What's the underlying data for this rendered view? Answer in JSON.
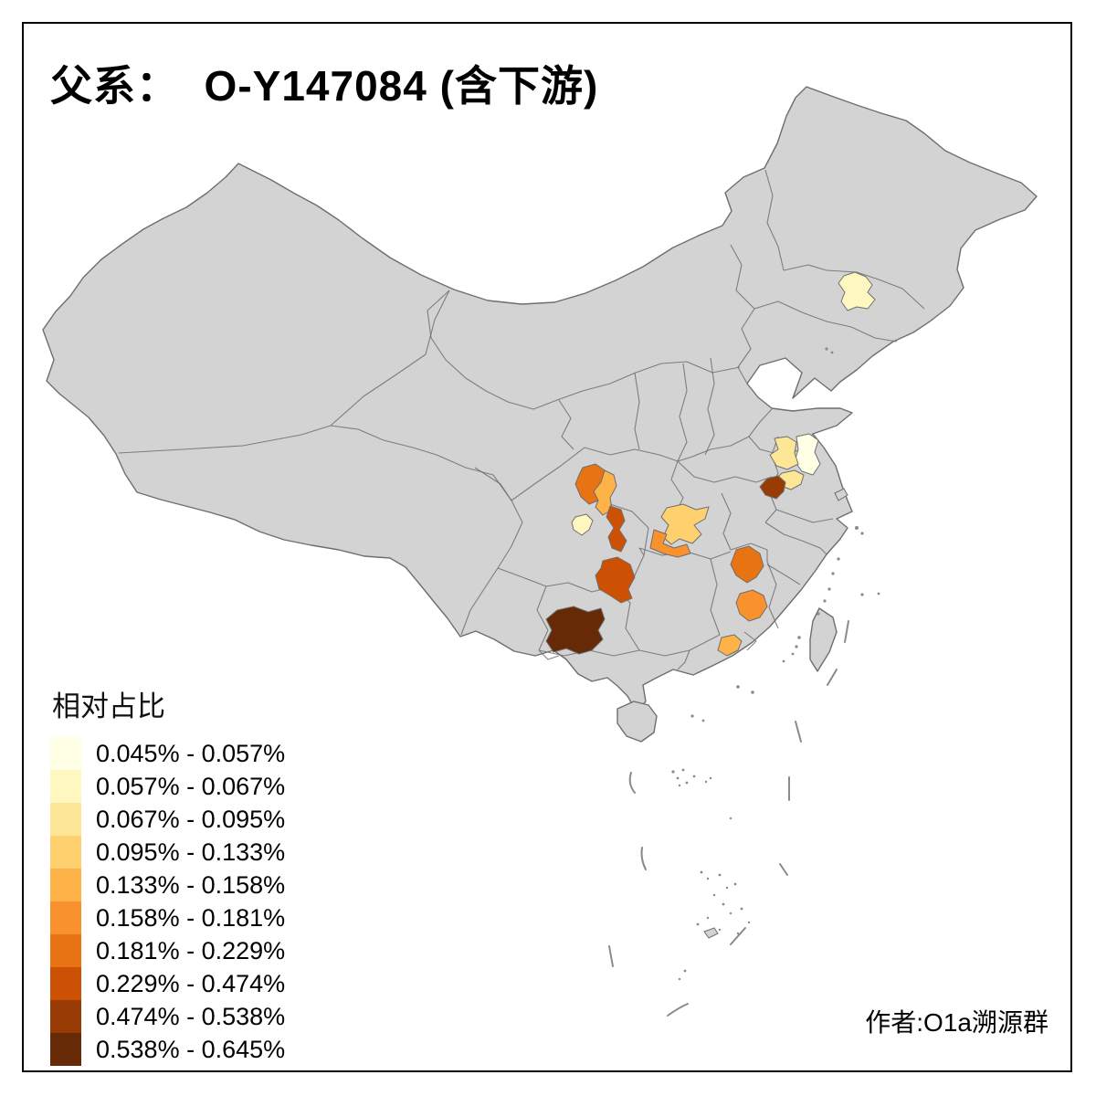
{
  "title": "父系：  O-Y147084 (含下游)",
  "legend": {
    "title": "相对占比",
    "items": [
      {
        "label": "0.045% - 0.057%",
        "color": "#FFFFE5"
      },
      {
        "label": "0.057% - 0.067%",
        "color": "#FFF7C0"
      },
      {
        "label": "0.067% - 0.095%",
        "color": "#FEE697"
      },
      {
        "label": "0.095% - 0.133%",
        "color": "#FED16E"
      },
      {
        "label": "0.133% - 0.158%",
        "color": "#FDB347"
      },
      {
        "label": "0.158% - 0.181%",
        "color": "#F9912C"
      },
      {
        "label": "0.181% - 0.229%",
        "color": "#E87313"
      },
      {
        "label": "0.229% - 0.474%",
        "color": "#CC5104"
      },
      {
        "label": "0.474% - 0.538%",
        "color": "#993B04"
      },
      {
        "label": "0.538% - 0.645%",
        "color": "#662A06"
      }
    ]
  },
  "attribution": "作者:O1a溯源群",
  "map": {
    "background": "#FFFFFF",
    "land_color": "#D3D3D3",
    "border_color": "#6E6E6E",
    "regions": [
      {
        "name": "jilin-prefecture",
        "class_index": 1
      },
      {
        "name": "jiangsu-east-prefecture",
        "class_index": 0
      },
      {
        "name": "jiangsu-west-prefecture",
        "class_index": 2
      },
      {
        "name": "jiangsu-south-prefecture",
        "class_index": 2
      },
      {
        "name": "anhui-prefecture",
        "class_index": 8
      },
      {
        "name": "sichuan-north-prefecture",
        "class_index": 6
      },
      {
        "name": "sichuan-east-prefecture",
        "class_index": 4
      },
      {
        "name": "chengdu-prefecture",
        "class_index": 1
      },
      {
        "name": "chongqing-prefecture",
        "class_index": 7
      },
      {
        "name": "hubei-north-prefecture",
        "class_index": 3
      },
      {
        "name": "hubei-south-prefecture",
        "class_index": 5
      },
      {
        "name": "hunan-west-prefecture",
        "class_index": 7
      },
      {
        "name": "guizhou-sw-prefecture",
        "class_index": 9
      },
      {
        "name": "jiangxi-prefecture",
        "class_index": 6
      },
      {
        "name": "fujian-west-prefecture",
        "class_index": 5
      },
      {
        "name": "guangdong-east-prefecture",
        "class_index": 4
      }
    ]
  }
}
